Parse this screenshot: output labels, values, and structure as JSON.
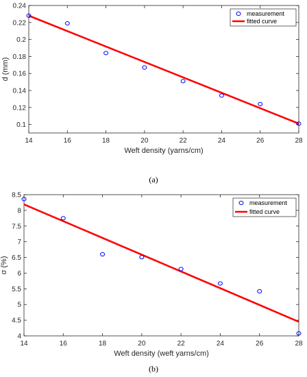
{
  "colors": {
    "measurement": "#0000ff",
    "fit": "#ff0000",
    "axis": "#262626"
  },
  "chart_data": [
    {
      "type": "scatter",
      "caption": "(a)",
      "xlabel": "Weft density (yarns/cm)",
      "ylabel": "d (mm)",
      "xlim": [
        14,
        28
      ],
      "ylim": [
        0.09,
        0.24
      ],
      "xticks": [
        "14",
        "16",
        "18",
        "20",
        "22",
        "24",
        "26",
        "28"
      ],
      "yticks": [
        "0.1",
        "0.12",
        "0.14",
        "0.16",
        "0.18",
        "0.2",
        "0.22",
        "0.24"
      ],
      "legend_position": "top-right",
      "grid": false,
      "series": [
        {
          "name": "measurement",
          "kind": "points",
          "x": [
            14,
            16,
            18,
            20,
            22,
            24,
            26,
            28
          ],
          "y": [
            0.228,
            0.219,
            0.184,
            0.167,
            0.151,
            0.134,
            0.124,
            0.101
          ]
        },
        {
          "name": "fitted curve",
          "kind": "line",
          "x": [
            14,
            28
          ],
          "y": [
            0.228,
            0.101
          ]
        }
      ]
    },
    {
      "type": "scatter",
      "caption": "(b)",
      "xlabel": "Weft density (weft yarns/cm)",
      "ylabel": "σ (%)",
      "xlim": [
        14,
        28
      ],
      "ylim": [
        4,
        8.5
      ],
      "xticks": [
        "14",
        "16",
        "18",
        "20",
        "22",
        "24",
        "26",
        "28"
      ],
      "yticks": [
        "4",
        "4.5",
        "5",
        "5.5",
        "6",
        "6.5",
        "7",
        "7.5",
        "8",
        "8.5"
      ],
      "legend_position": "top-right",
      "grid": false,
      "series": [
        {
          "name": "measurement",
          "kind": "points",
          "x": [
            14,
            16,
            18,
            20,
            22,
            24,
            26,
            28
          ],
          "y": [
            8.36,
            7.75,
            6.6,
            6.51,
            6.13,
            5.67,
            5.42,
            4.08
          ]
        },
        {
          "name": "fitted curve",
          "kind": "line",
          "x": [
            14,
            28
          ],
          "y": [
            8.19,
            4.45
          ]
        }
      ]
    }
  ]
}
